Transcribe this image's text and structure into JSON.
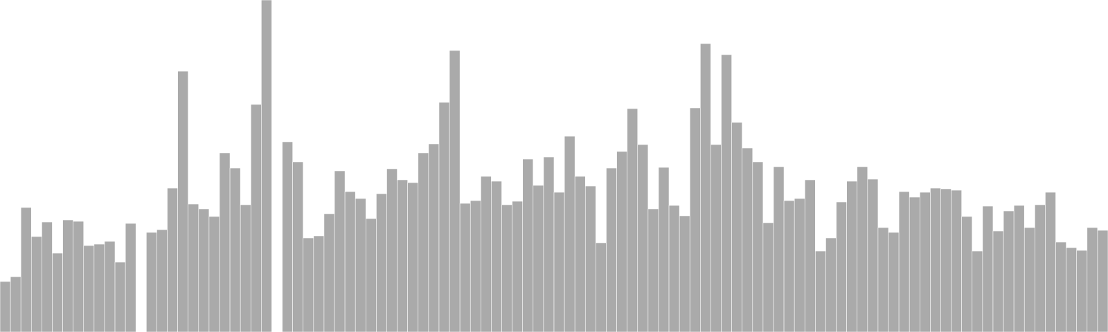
{
  "chart_data": {
    "type": "bar",
    "title": "",
    "xlabel": "",
    "ylabel": "",
    "ylim": [
      0,
      480
    ],
    "grid": false,
    "legend": "none",
    "bar_color": "#aaaaaa",
    "bar_edge_color": "#ffffff",
    "values": [
      73,
      80,
      180,
      138,
      159,
      114,
      162,
      160,
      125,
      127,
      131,
      101,
      157,
      null,
      144,
      148,
      208,
      377,
      185,
      178,
      167,
      259,
      237,
      184,
      329,
      480,
      null,
      275,
      246,
      136,
      139,
      171,
      233,
      203,
      193,
      164,
      200,
      236,
      220,
      216,
      259,
      272,
      332,
      407,
      186,
      190,
      225,
      218,
      184,
      189,
      250,
      212,
      253,
      202,
      283,
      225,
      211,
      129,
      237,
      261,
      323,
      271,
      178,
      238,
      183,
      168,
      324,
      417,
      271,
      401,
      303,
      266,
      246,
      158,
      239,
      190,
      193,
      220,
      117,
      136,
      188,
      218,
      239,
      221,
      151,
      144,
      203,
      195,
      202,
      208,
      207,
      205,
      167,
      117,
      182,
      146,
      175,
      183,
      151,
      184,
      202,
      130,
      122,
      118,
      151,
      147
    ]
  }
}
